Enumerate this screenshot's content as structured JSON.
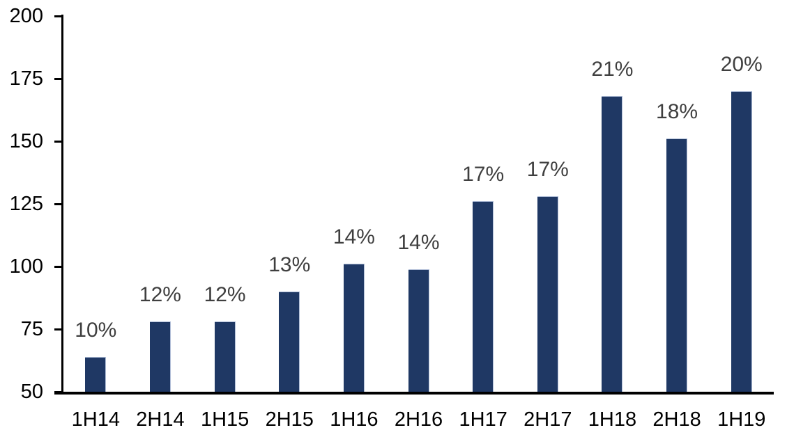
{
  "chart_data": {
    "type": "bar",
    "title": "",
    "xlabel": "",
    "ylabel": "",
    "categories": [
      "1H14",
      "2H14",
      "1H15",
      "2H15",
      "1H16",
      "2H16",
      "1H17",
      "2H17",
      "1H18",
      "2H18",
      "1H19"
    ],
    "values": [
      64,
      78,
      78,
      90,
      101,
      99,
      126,
      128,
      168,
      151,
      170
    ],
    "bar_labels": [
      "10%",
      "12%",
      "12%",
      "13%",
      "14%",
      "14%",
      "17%",
      "17%",
      "21%",
      "18%",
      "20%"
    ],
    "ylim": [
      50,
      200
    ],
    "y_ticks": [
      200,
      175,
      150,
      125,
      100,
      75,
      50
    ],
    "grid": false,
    "legend": false,
    "colors": {
      "bar_fill": "#1f3864",
      "bar_edge": "#aebcd6",
      "data_label": "#3f3f3f",
      "axis_line": "#000000",
      "tick_label": "#000000",
      "background": "#ffffff"
    }
  }
}
